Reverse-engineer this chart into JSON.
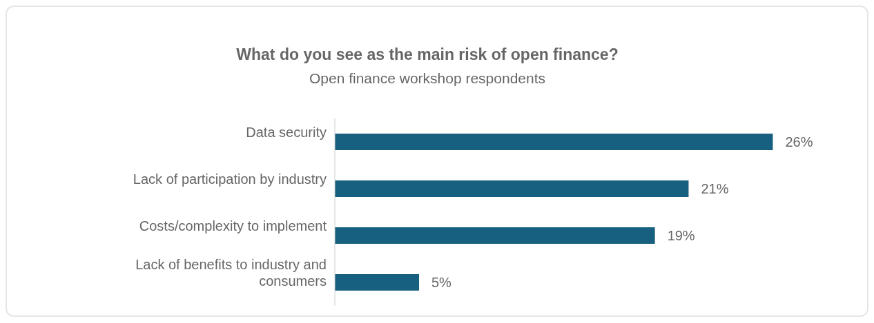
{
  "chart_data": {
    "type": "bar",
    "orientation": "horizontal",
    "title": "What do you see as the main risk of open finance?",
    "subtitle": "Open finance workshop respondents",
    "categories": [
      "Data security",
      "Lack of participation by industry",
      "Costs/complexity to implement",
      "Lack of benefits to industry and consumers"
    ],
    "values": [
      26,
      21,
      19,
      5
    ],
    "value_labels": [
      "26%",
      "21%",
      "19%",
      "5%"
    ],
    "color": "#17607f",
    "tick_labels": "y",
    "grid": false,
    "legend": false
  }
}
